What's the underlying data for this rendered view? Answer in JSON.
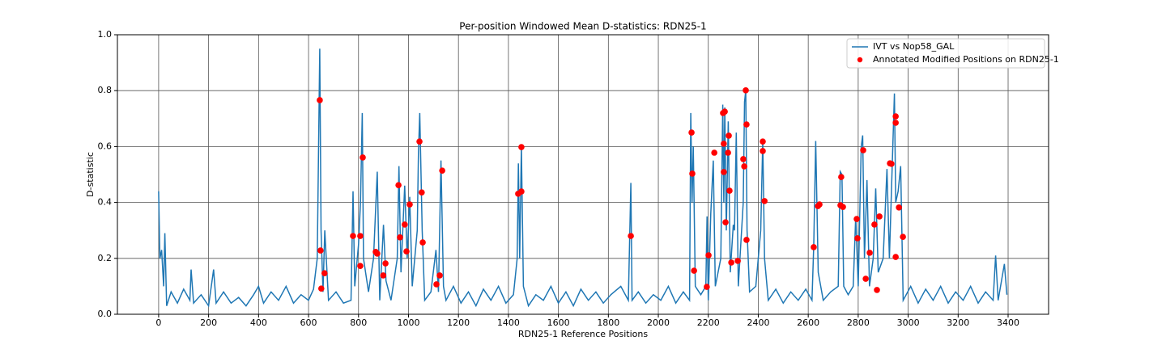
{
  "chart_data": {
    "type": "line",
    "title": "Per-position Windowed Mean D-statistics: RDN25-1",
    "x_label": "RDN25-1 Reference Positions",
    "y_label": "D-statistic",
    "xlim": [
      -165,
      3562
    ],
    "ylim": [
      0,
      1
    ],
    "xticks": [
      0,
      200,
      400,
      600,
      800,
      1000,
      1200,
      1400,
      1600,
      1800,
      2000,
      2200,
      2400,
      2600,
      2800,
      3000,
      3200,
      3400
    ],
    "yticks": [
      {
        "value": 0,
        "label": "0.0"
      },
      0.2,
      0.4,
      0.6,
      0.8,
      {
        "value": 1,
        "label": "1.0"
      }
    ],
    "grid": true,
    "legend": "upper right",
    "series": [
      {
        "name": "IVT vs Nop58_GAL",
        "type": "line",
        "color": "#1f77b4",
        "x": [
          0,
          5,
          12,
          20,
          25,
          32,
          50,
          75,
          100,
          125,
          130,
          140,
          170,
          200,
          220,
          230,
          260,
          290,
          320,
          350,
          380,
          400,
          420,
          450,
          480,
          510,
          540,
          570,
          600,
          620,
          635,
          645,
          650,
          658,
          665,
          680,
          710,
          740,
          770,
          778,
          785,
          800,
          808,
          815,
          820,
          840,
          860,
          875,
          885,
          900,
          910,
          930,
          955,
          962,
          970,
          985,
          995,
          1005,
          1015,
          1035,
          1040,
          1045,
          1055,
          1065,
          1090,
          1110,
          1120,
          1130,
          1140,
          1150,
          1180,
          1210,
          1240,
          1270,
          1300,
          1330,
          1360,
          1390,
          1420,
          1435,
          1440,
          1445,
          1452,
          1460,
          1480,
          1510,
          1540,
          1570,
          1600,
          1630,
          1660,
          1690,
          1720,
          1750,
          1780,
          1810,
          1850,
          1880,
          1890,
          1895,
          1920,
          1950,
          1980,
          2010,
          2040,
          2070,
          2100,
          2125,
          2130,
          2135,
          2140,
          2148,
          2170,
          2190,
          2195,
          2200,
          2210,
          2220,
          2228,
          2250,
          2258,
          2262,
          2266,
          2272,
          2280,
          2288,
          2300,
          2305,
          2312,
          2320,
          2340,
          2345,
          2350,
          2355,
          2365,
          2390,
          2410,
          2418,
          2425,
          2440,
          2470,
          2500,
          2530,
          2560,
          2590,
          2615,
          2622,
          2630,
          2640,
          2660,
          2690,
          2720,
          2728,
          2735,
          2742,
          2760,
          2780,
          2790,
          2800,
          2812,
          2818,
          2825,
          2835,
          2845,
          2860,
          2870,
          2880,
          2900,
          2915,
          2925,
          2945,
          2950,
          2960,
          2970,
          2980,
          3010,
          3040,
          3070,
          3100,
          3130,
          3160,
          3190,
          3220,
          3250,
          3280,
          3310,
          3340,
          3350,
          3360,
          3385,
          3395
        ],
        "values": [
          0.44,
          0.2,
          0.23,
          0.1,
          0.29,
          0.03,
          0.08,
          0.04,
          0.09,
          0.05,
          0.16,
          0.04,
          0.07,
          0.03,
          0.16,
          0.04,
          0.08,
          0.04,
          0.06,
          0.03,
          0.07,
          0.1,
          0.04,
          0.08,
          0.05,
          0.1,
          0.04,
          0.07,
          0.05,
          0.09,
          0.2,
          0.95,
          0.3,
          0.08,
          0.3,
          0.05,
          0.08,
          0.04,
          0.05,
          0.44,
          0.1,
          0.25,
          0.4,
          0.72,
          0.2,
          0.08,
          0.2,
          0.51,
          0.05,
          0.32,
          0.12,
          0.05,
          0.2,
          0.53,
          0.15,
          0.46,
          0.2,
          0.42,
          0.1,
          0.3,
          0.58,
          0.72,
          0.3,
          0.05,
          0.08,
          0.23,
          0.08,
          0.55,
          0.1,
          0.05,
          0.1,
          0.04,
          0.08,
          0.03,
          0.09,
          0.05,
          0.1,
          0.04,
          0.07,
          0.2,
          0.54,
          0.2,
          0.6,
          0.1,
          0.03,
          0.07,
          0.05,
          0.1,
          0.04,
          0.08,
          0.03,
          0.09,
          0.05,
          0.08,
          0.04,
          0.07,
          0.1,
          0.05,
          0.47,
          0.05,
          0.08,
          0.04,
          0.07,
          0.05,
          0.1,
          0.04,
          0.08,
          0.05,
          0.72,
          0.4,
          0.6,
          0.1,
          0.07,
          0.1,
          0.35,
          0.05,
          0.36,
          0.55,
          0.1,
          0.2,
          0.75,
          0.4,
          0.74,
          0.3,
          0.69,
          0.15,
          0.32,
          0.3,
          0.65,
          0.1,
          0.4,
          0.76,
          0.8,
          0.3,
          0.08,
          0.1,
          0.3,
          0.62,
          0.2,
          0.05,
          0.09,
          0.04,
          0.08,
          0.05,
          0.09,
          0.05,
          0.25,
          0.62,
          0.15,
          0.05,
          0.08,
          0.1,
          0.51,
          0.5,
          0.1,
          0.07,
          0.1,
          0.35,
          0.1,
          0.6,
          0.64,
          0.2,
          0.48,
          0.1,
          0.2,
          0.45,
          0.15,
          0.2,
          0.52,
          0.2,
          0.79,
          0.4,
          0.44,
          0.53,
          0.05,
          0.1,
          0.04,
          0.09,
          0.05,
          0.1,
          0.04,
          0.08,
          0.05,
          0.1,
          0.04,
          0.08,
          0.05,
          0.21,
          0.05,
          0.18,
          0.07
        ]
      },
      {
        "name": "Annotated Modified Positions on RDN25-1",
        "type": "scatter",
        "color": "#ff0000",
        "x": [
          645,
          648,
          651,
          664,
          778,
          807,
          807,
          817,
          869,
          875,
          899,
          908,
          960,
          966,
          985,
          992,
          1005,
          1044,
          1053,
          1057,
          1112,
          1125,
          1135,
          1439,
          1452,
          1452,
          1890,
          2133,
          2136,
          2143,
          2194,
          2201,
          2224,
          2259,
          2262,
          2262,
          2266,
          2269,
          2279,
          2282,
          2285,
          2292,
          2318,
          2340,
          2344,
          2350,
          2353,
          2353,
          2418,
          2418,
          2425,
          2622,
          2639,
          2645,
          2729,
          2732,
          2739,
          2794,
          2797,
          2820,
          2830,
          2846,
          2865,
          2875,
          2885,
          2927,
          2933,
          2950,
          2950,
          2950,
          2963,
          2979
        ],
        "values": [
          0.766,
          0.228,
          0.092,
          0.147,
          0.28,
          0.28,
          0.173,
          0.561,
          0.223,
          0.217,
          0.139,
          0.182,
          0.462,
          0.275,
          0.321,
          0.225,
          0.393,
          0.618,
          0.436,
          0.257,
          0.107,
          0.139,
          0.514,
          0.431,
          0.439,
          0.598,
          0.28,
          0.65,
          0.503,
          0.156,
          0.098,
          0.211,
          0.578,
          0.72,
          0.509,
          0.61,
          0.725,
          0.329,
          0.578,
          0.639,
          0.442,
          0.185,
          0.191,
          0.555,
          0.529,
          0.801,
          0.679,
          0.266,
          0.618,
          0.584,
          0.405,
          0.24,
          0.387,
          0.393,
          0.39,
          0.491,
          0.384,
          0.341,
          0.272,
          0.587,
          0.127,
          0.22,
          0.321,
          0.087,
          0.35,
          0.54,
          0.538,
          0.205,
          0.708,
          0.685,
          0.382,
          0.277
        ]
      }
    ]
  }
}
